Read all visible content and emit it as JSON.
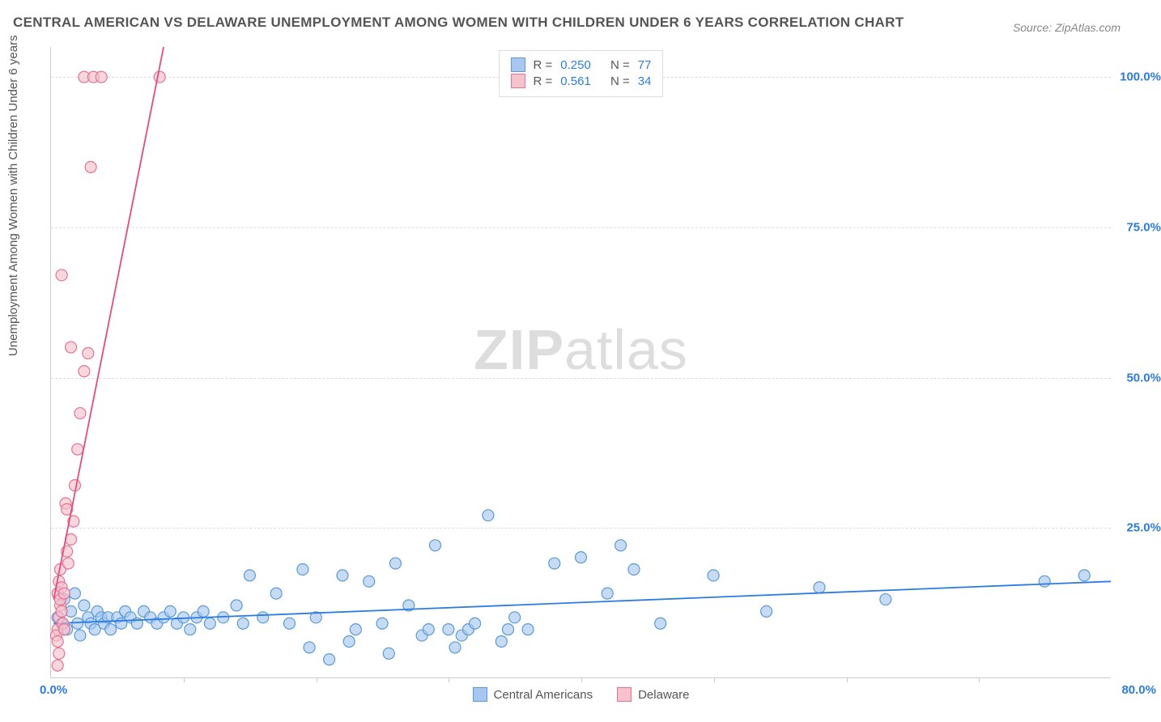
{
  "title": "CENTRAL AMERICAN VS DELAWARE UNEMPLOYMENT AMONG WOMEN WITH CHILDREN UNDER 6 YEARS CORRELATION CHART",
  "source": "Source: ZipAtlas.com",
  "y_axis_label": "Unemployment Among Women with Children Under 6 years",
  "watermark_bold": "ZIP",
  "watermark_light": "atlas",
  "chart": {
    "type": "scatter",
    "background_color": "#ffffff",
    "grid_color": "#dddddd",
    "axis_color": "#cccccc",
    "xlim": [
      0,
      80
    ],
    "ylim": [
      0,
      105
    ],
    "y_ticks": [
      25,
      50,
      75,
      100
    ],
    "y_tick_labels": [
      "25.0%",
      "50.0%",
      "75.0%",
      "100.0%"
    ],
    "y_tick_color": "#2c7be5",
    "x_tick_min": "0.0%",
    "x_tick_max": "80.0%",
    "x_tick_color": "#2c7be5",
    "x_minor_ticks": [
      10,
      20,
      30,
      40,
      50,
      60,
      70
    ],
    "marker_radius": 7,
    "marker_stroke_width": 1.2,
    "line_width": 1.8,
    "series": [
      {
        "name": "Central Americans",
        "color_fill": "#a7c7f0",
        "color_stroke": "#5b9bd5",
        "line_color": "#2c7be5",
        "r_value": "0.250",
        "n_value": "77",
        "trend": {
          "x1": 0.2,
          "y1": 9.0,
          "x2": 80,
          "y2": 16.0
        },
        "points": [
          [
            0.5,
            10
          ],
          [
            0.8,
            9
          ],
          [
            1.0,
            13
          ],
          [
            1.2,
            8
          ],
          [
            1.5,
            11
          ],
          [
            1.8,
            14
          ],
          [
            2.0,
            9
          ],
          [
            2.2,
            7
          ],
          [
            2.5,
            12
          ],
          [
            2.8,
            10
          ],
          [
            3.0,
            9
          ],
          [
            3.3,
            8
          ],
          [
            3.5,
            11
          ],
          [
            3.8,
            10
          ],
          [
            4.0,
            9
          ],
          [
            4.3,
            10
          ],
          [
            4.5,
            8
          ],
          [
            5.0,
            10
          ],
          [
            5.3,
            9
          ],
          [
            5.6,
            11
          ],
          [
            6.0,
            10
          ],
          [
            6.5,
            9
          ],
          [
            7.0,
            11
          ],
          [
            7.5,
            10
          ],
          [
            8.0,
            9
          ],
          [
            8.5,
            10
          ],
          [
            9.0,
            11
          ],
          [
            9.5,
            9
          ],
          [
            10,
            10
          ],
          [
            10.5,
            8
          ],
          [
            11,
            10
          ],
          [
            11.5,
            11
          ],
          [
            12,
            9
          ],
          [
            13,
            10
          ],
          [
            14,
            12
          ],
          [
            14.5,
            9
          ],
          [
            15,
            17
          ],
          [
            16,
            10
          ],
          [
            17,
            14
          ],
          [
            18,
            9
          ],
          [
            19,
            18
          ],
          [
            19.5,
            5
          ],
          [
            20,
            10
          ],
          [
            21,
            3
          ],
          [
            22,
            17
          ],
          [
            22.5,
            6
          ],
          [
            23,
            8
          ],
          [
            24,
            16
          ],
          [
            25,
            9
          ],
          [
            25.5,
            4
          ],
          [
            26,
            19
          ],
          [
            27,
            12
          ],
          [
            28,
            7
          ],
          [
            28.5,
            8
          ],
          [
            29,
            22
          ],
          [
            30,
            8
          ],
          [
            30.5,
            5
          ],
          [
            31,
            7
          ],
          [
            31.5,
            8
          ],
          [
            32,
            9
          ],
          [
            33,
            27
          ],
          [
            34,
            6
          ],
          [
            34.5,
            8
          ],
          [
            35,
            10
          ],
          [
            36,
            8
          ],
          [
            38,
            19
          ],
          [
            40,
            20
          ],
          [
            42,
            14
          ],
          [
            43,
            22
          ],
          [
            44,
            18
          ],
          [
            46,
            9
          ],
          [
            50,
            17
          ],
          [
            54,
            11
          ],
          [
            58,
            15
          ],
          [
            63,
            13
          ],
          [
            75,
            16
          ],
          [
            78,
            17
          ]
        ]
      },
      {
        "name": "Delaware",
        "color_fill": "#f5c2cd",
        "color_stroke": "#e57393",
        "line_color": "#e84a7a",
        "r_value": "0.561",
        "n_value": "34",
        "trend": {
          "x1": 0.2,
          "y1": 13.0,
          "x2": 8.5,
          "y2": 105.0
        },
        "points": [
          [
            0.5,
            14
          ],
          [
            0.6,
            10
          ],
          [
            0.7,
            12
          ],
          [
            0.5,
            8
          ],
          [
            0.8,
            11
          ],
          [
            0.6,
            16
          ],
          [
            0.9,
            9
          ],
          [
            0.4,
            7
          ],
          [
            0.7,
            13
          ],
          [
            0.5,
            6
          ],
          [
            0.6,
            4
          ],
          [
            0.8,
            15
          ],
          [
            1.0,
            8
          ],
          [
            0.7,
            18
          ],
          [
            0.5,
            2
          ],
          [
            1.2,
            21
          ],
          [
            1.5,
            23
          ],
          [
            1.1,
            29
          ],
          [
            1.7,
            26
          ],
          [
            1.3,
            19
          ],
          [
            1.8,
            32
          ],
          [
            2.0,
            38
          ],
          [
            2.2,
            44
          ],
          [
            2.5,
            51
          ],
          [
            1.5,
            55
          ],
          [
            0.8,
            67
          ],
          [
            2.8,
            54
          ],
          [
            3.0,
            85
          ],
          [
            1.2,
            28
          ],
          [
            2.5,
            100
          ],
          [
            3.2,
            100
          ],
          [
            3.8,
            100
          ],
          [
            8.2,
            100
          ],
          [
            1.0,
            14
          ]
        ]
      }
    ]
  },
  "legend_top": {
    "r_label": "R =",
    "n_label": "N ="
  },
  "legend_bottom": {
    "items": [
      "Central Americans",
      "Delaware"
    ]
  }
}
